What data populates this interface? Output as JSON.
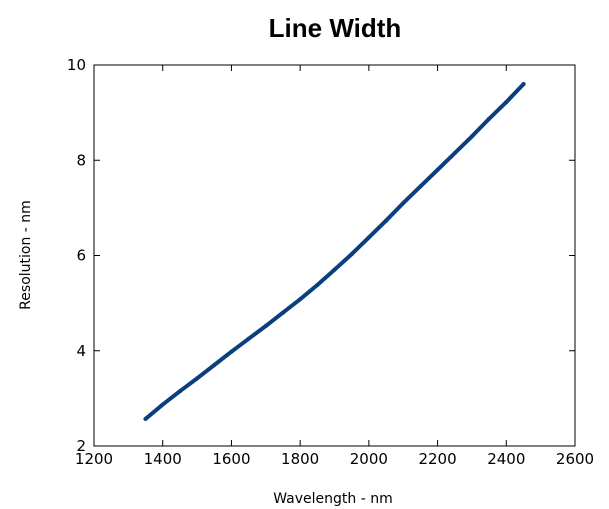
{
  "chart_data": {
    "type": "line",
    "title": "Line Width",
    "xlabel": "Wavelength - nm",
    "ylabel": "Resolution - nm",
    "xlim": [
      1200,
      2600
    ],
    "ylim": [
      2,
      10
    ],
    "xticks": [
      1200,
      1400,
      1600,
      1800,
      2000,
      2200,
      2400,
      2600
    ],
    "yticks": [
      2,
      4,
      6,
      8,
      10
    ],
    "xtick_labels": [
      "1200",
      "1400",
      "1600",
      "1800",
      "2000",
      "2200",
      "2400",
      "2600"
    ],
    "ytick_labels": [
      "2",
      "4",
      "6",
      "8",
      "10"
    ],
    "grid": false,
    "legend": "none",
    "series": [
      {
        "color": "#0a3f7f",
        "x": [
          1350,
          1400,
          1450,
          1500,
          1550,
          1600,
          1650,
          1700,
          1750,
          1800,
          1850,
          1900,
          1950,
          2000,
          2050,
          2100,
          2150,
          2200,
          2250,
          2300,
          2350,
          2400,
          2450
        ],
        "y": [
          2.57,
          2.87,
          3.15,
          3.42,
          3.7,
          3.98,
          4.25,
          4.52,
          4.8,
          5.08,
          5.38,
          5.7,
          6.03,
          6.38,
          6.73,
          7.1,
          7.45,
          7.8,
          8.15,
          8.5,
          8.87,
          9.22,
          9.6
        ]
      }
    ]
  }
}
